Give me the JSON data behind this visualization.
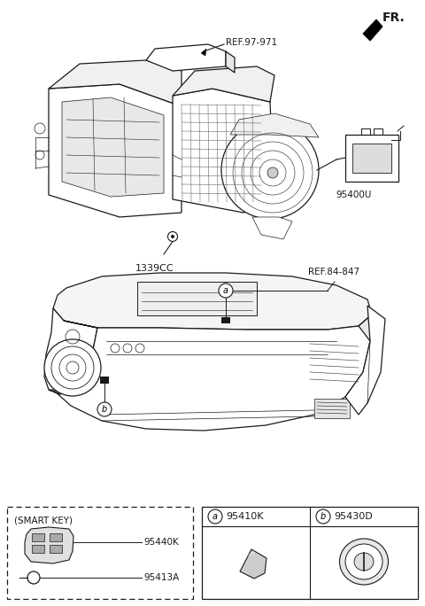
{
  "bg_color": "#ffffff",
  "line_color": "#1a1a1a",
  "figsize": [
    4.8,
    6.84
  ],
  "dpi": 100,
  "fr_label": "FR.",
  "ref1_label": "REF.97-971",
  "ref2_label": "REF.84-847",
  "part_1339cc": "1339CC",
  "part_95400u": "95400U",
  "part_95410k": "95410K",
  "part_95430d": "95430D",
  "part_95440k": "95440K",
  "part_95413a": "95413A",
  "smart_key_label": "(SMART KEY)",
  "circle_a_label": "a",
  "circle_b_label": "b"
}
